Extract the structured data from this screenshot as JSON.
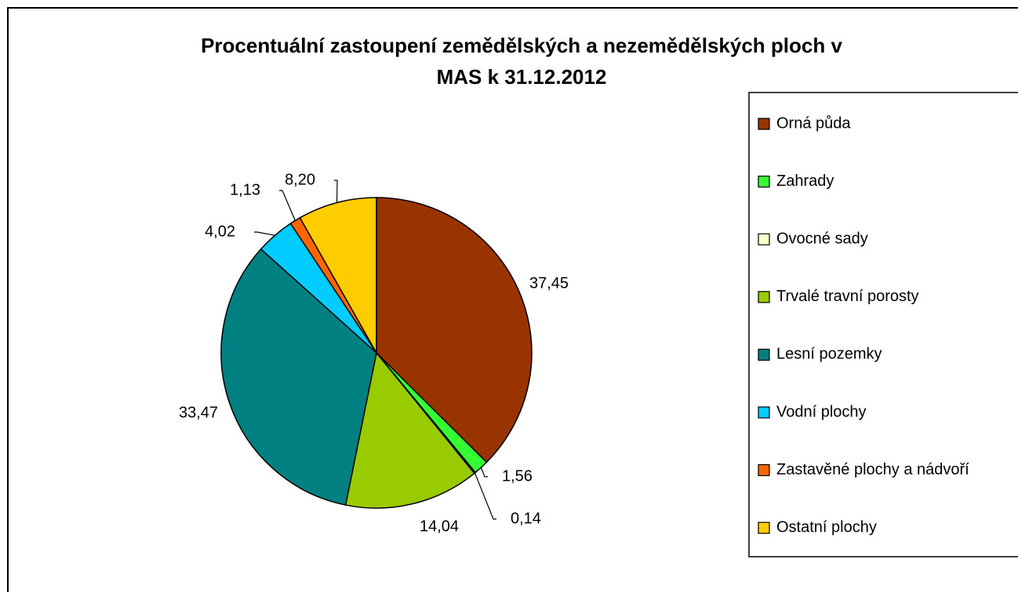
{
  "chart_data": {
    "type": "pie",
    "title": [
      "Procentuální zastoupení zemědělských a nezemědělských ploch v",
      "MAS k 31.12.2012"
    ],
    "categories": [
      "Orná půda",
      "Zahrady",
      "Ovocné sady",
      "Trvalé travní porosty",
      "Lesní pozemky",
      "Vodní plochy",
      "Zastavěné plochy a nádvoří",
      "Ostatní plochy"
    ],
    "values": [
      37.45,
      1.56,
      0.14,
      14.04,
      33.47,
      4.02,
      1.13,
      8.2
    ],
    "value_labels": [
      "37,45",
      "1,56",
      "0,14",
      "14,04",
      "33,47",
      "4,02",
      "1,13",
      "8,20"
    ],
    "colors": [
      "#993300",
      "#33ff33",
      "#ffffcc",
      "#99cc00",
      "#008080",
      "#00ccff",
      "#ff6600",
      "#ffcc00"
    ]
  }
}
